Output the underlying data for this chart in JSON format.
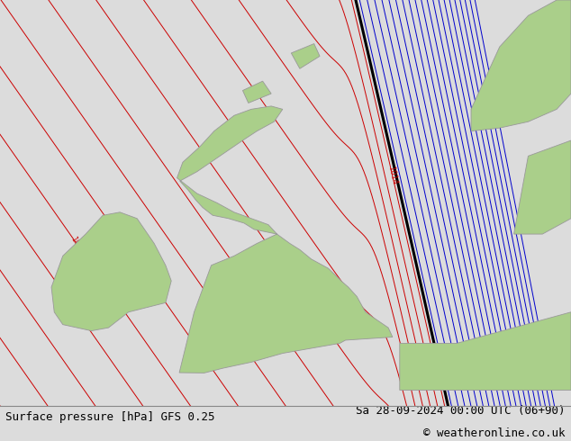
{
  "title_left": "Surface pressure [hPa] GFS 0.25",
  "title_right": "Sa 28-09-2024 00:00 UTC (06+90)",
  "copyright": "© weatheronline.co.uk",
  "bg_color": "#dcdcdc",
  "land_color": "#aacf8a",
  "coast_color": "#999999",
  "red_contour_color": "#cc0000",
  "blue_contour_color": "#0000cc",
  "black_contour_color": "#000000",
  "font_size_bottom": 9,
  "xlim": [
    -12,
    8
  ],
  "ylim": [
    49,
    62
  ],
  "figw": 6.34,
  "figh": 4.9
}
